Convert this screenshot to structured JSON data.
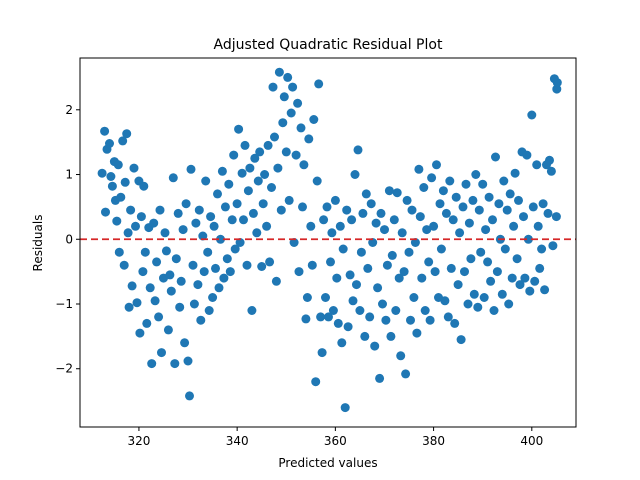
{
  "chart_data": {
    "type": "scatter",
    "title": "Adjusted Quadratic Residual Plot",
    "xlabel": "Predicted values",
    "ylabel": "Residuals",
    "xlim": [
      308,
      409
    ],
    "ylim": [
      -2.9,
      2.8
    ],
    "xticks": [
      320,
      340,
      360,
      380,
      400
    ],
    "yticks": [
      -2,
      -1,
      0,
      1,
      2
    ],
    "xtick_labels": [
      "320",
      "340",
      "360",
      "380",
      "400"
    ],
    "ytick_labels": [
      "−2",
      "−1",
      "0",
      "1",
      "2"
    ],
    "grid": false,
    "reference_line": {
      "y": 0,
      "style": "dashed",
      "color": "#d62728"
    },
    "marker_color": "#1f77b4",
    "points": [
      [
        312.5,
        1.02
      ],
      [
        313.0,
        1.67
      ],
      [
        313.2,
        0.42
      ],
      [
        313.5,
        1.39
      ],
      [
        314.0,
        1.48
      ],
      [
        314.3,
        0.97
      ],
      [
        314.6,
        0.82
      ],
      [
        315.0,
        1.2
      ],
      [
        315.2,
        0.6
      ],
      [
        315.5,
        0.28
      ],
      [
        315.8,
        1.15
      ],
      [
        316.0,
        -0.2
      ],
      [
        316.3,
        0.65
      ],
      [
        316.7,
        1.52
      ],
      [
        317.0,
        -0.4
      ],
      [
        317.2,
        0.88
      ],
      [
        317.5,
        1.63
      ],
      [
        317.8,
        0.1
      ],
      [
        318.0,
        -1.05
      ],
      [
        318.3,
        0.45
      ],
      [
        318.6,
        -0.72
      ],
      [
        319.0,
        1.1
      ],
      [
        319.3,
        0.2
      ],
      [
        319.6,
        -0.98
      ],
      [
        320.0,
        0.9
      ],
      [
        320.2,
        -1.45
      ],
      [
        320.5,
        0.35
      ],
      [
        320.8,
        -0.5
      ],
      [
        321.0,
        0.82
      ],
      [
        321.3,
        -0.2
      ],
      [
        321.6,
        -1.3
      ],
      [
        322.0,
        0.18
      ],
      [
        322.3,
        -0.75
      ],
      [
        322.6,
        -1.92
      ],
      [
        323.0,
        0.25
      ],
      [
        323.3,
        -0.95
      ],
      [
        323.6,
        -0.35
      ],
      [
        324.0,
        -1.2
      ],
      [
        324.3,
        0.45
      ],
      [
        324.6,
        -1.75
      ],
      [
        325.0,
        -0.6
      ],
      [
        325.3,
        0.1
      ],
      [
        325.6,
        -0.18
      ],
      [
        326.0,
        -1.4
      ],
      [
        326.3,
        -0.55
      ],
      [
        326.6,
        -0.8
      ],
      [
        327.0,
        0.95
      ],
      [
        327.3,
        -1.92
      ],
      [
        327.6,
        -0.3
      ],
      [
        328.0,
        0.4
      ],
      [
        328.3,
        -1.05
      ],
      [
        328.6,
        -0.65
      ],
      [
        329.0,
        0.15
      ],
      [
        329.3,
        -1.6
      ],
      [
        329.6,
        0.55
      ],
      [
        330.0,
        -1.88
      ],
      [
        330.3,
        -2.42
      ],
      [
        330.6,
        1.08
      ],
      [
        331.0,
        -0.4
      ],
      [
        331.3,
        -1.0
      ],
      [
        331.6,
        0.25
      ],
      [
        332.0,
        -0.7
      ],
      [
        332.3,
        0.45
      ],
      [
        332.6,
        -1.25
      ],
      [
        333.0,
        0.05
      ],
      [
        333.3,
        -0.5
      ],
      [
        333.6,
        0.9
      ],
      [
        334.0,
        -0.2
      ],
      [
        334.3,
        -1.1
      ],
      [
        334.6,
        0.35
      ],
      [
        335.0,
        -0.9
      ],
      [
        335.3,
        0.2
      ],
      [
        335.6,
        -0.45
      ],
      [
        336.0,
        0.7
      ],
      [
        336.3,
        -0.75
      ],
      [
        336.6,
        0.0
      ],
      [
        337.0,
        1.05
      ],
      [
        337.3,
        -0.6
      ],
      [
        337.6,
        0.5
      ],
      [
        338.0,
        -0.3
      ],
      [
        338.3,
        0.85
      ],
      [
        338.6,
        -0.5
      ],
      [
        339.0,
        0.3
      ],
      [
        339.3,
        1.3
      ],
      [
        339.6,
        -0.15
      ],
      [
        340.0,
        0.55
      ],
      [
        340.3,
        1.7
      ],
      [
        340.6,
        -0.05
      ],
      [
        341.0,
        1.02
      ],
      [
        341.3,
        0.3
      ],
      [
        341.6,
        1.45
      ],
      [
        342.0,
        -0.4
      ],
      [
        342.3,
        0.75
      ],
      [
        342.6,
        1.1
      ],
      [
        343.0,
        -1.1
      ],
      [
        343.3,
        0.4
      ],
      [
        343.6,
        1.25
      ],
      [
        344.0,
        0.1
      ],
      [
        344.3,
        0.9
      ],
      [
        344.6,
        1.35
      ],
      [
        345.0,
        -0.42
      ],
      [
        345.3,
        0.55
      ],
      [
        345.6,
        1.0
      ],
      [
        346.0,
        0.2
      ],
      [
        346.3,
        1.45
      ],
      [
        346.6,
        -0.35
      ],
      [
        347.0,
        0.8
      ],
      [
        347.3,
        2.35
      ],
      [
        347.6,
        1.58
      ],
      [
        348.0,
        -0.65
      ],
      [
        348.3,
        1.1
      ],
      [
        348.6,
        2.58
      ],
      [
        349.0,
        0.45
      ],
      [
        349.3,
        1.8
      ],
      [
        349.6,
        2.2
      ],
      [
        350.0,
        1.35
      ],
      [
        350.3,
        2.5
      ],
      [
        350.6,
        0.6
      ],
      [
        351.0,
        1.95
      ],
      [
        351.3,
        2.35
      ],
      [
        351.6,
        -0.05
      ],
      [
        352.0,
        1.3
      ],
      [
        352.3,
        2.1
      ],
      [
        352.6,
        -0.5
      ],
      [
        353.0,
        1.72
      ],
      [
        353.3,
        0.5
      ],
      [
        353.6,
        1.15
      ],
      [
        354.0,
        -1.23
      ],
      [
        354.3,
        -0.9
      ],
      [
        354.6,
        1.55
      ],
      [
        355.0,
        0.2
      ],
      [
        355.3,
        -0.4
      ],
      [
        355.6,
        1.85
      ],
      [
        356.0,
        -2.2
      ],
      [
        356.3,
        0.9
      ],
      [
        356.6,
        2.4
      ],
      [
        357.0,
        -1.2
      ],
      [
        357.3,
        -1.75
      ],
      [
        357.6,
        0.3
      ],
      [
        358.0,
        -0.9
      ],
      [
        358.3,
        0.5
      ],
      [
        358.6,
        -1.2
      ],
      [
        359.0,
        -0.35
      ],
      [
        359.3,
        0.1
      ],
      [
        359.6,
        -1.1
      ],
      [
        360.0,
        0.6
      ],
      [
        360.3,
        -0.6
      ],
      [
        360.6,
        -1.3
      ],
      [
        361.0,
        0.2
      ],
      [
        361.3,
        -1.6
      ],
      [
        361.6,
        -0.15
      ],
      [
        362.0,
        -2.6
      ],
      [
        362.3,
        0.45
      ],
      [
        362.6,
        -1.35
      ],
      [
        363.0,
        -0.55
      ],
      [
        363.3,
        0.3
      ],
      [
        363.6,
        -0.95
      ],
      [
        364.0,
        1.0
      ],
      [
        364.3,
        -0.7
      ],
      [
        364.6,
        1.38
      ],
      [
        365.0,
        -1.1
      ],
      [
        365.3,
        -0.2
      ],
      [
        365.6,
        0.4
      ],
      [
        366.0,
        -1.5
      ],
      [
        366.3,
        0.7
      ],
      [
        366.6,
        -0.45
      ],
      [
        367.0,
        -1.2
      ],
      [
        367.3,
        0.55
      ],
      [
        367.6,
        -0.05
      ],
      [
        368.0,
        -1.65
      ],
      [
        368.3,
        0.25
      ],
      [
        368.6,
        -0.75
      ],
      [
        369.0,
        -2.15
      ],
      [
        369.3,
        0.4
      ],
      [
        369.6,
        -1.0
      ],
      [
        370.0,
        0.15
      ],
      [
        370.3,
        -1.25
      ],
      [
        370.6,
        -0.4
      ],
      [
        371.0,
        0.75
      ],
      [
        371.3,
        -1.5
      ],
      [
        371.6,
        -0.25
      ],
      [
        372.0,
        0.3
      ],
      [
        372.3,
        -1.1
      ],
      [
        372.6,
        0.72
      ],
      [
        373.0,
        -0.6
      ],
      [
        373.3,
        -1.8
      ],
      [
        373.6,
        0.1
      ],
      [
        374.0,
        -0.5
      ],
      [
        374.3,
        -2.08
      ],
      [
        374.6,
        0.6
      ],
      [
        375.0,
        -0.2
      ],
      [
        375.3,
        -1.25
      ],
      [
        375.6,
        0.45
      ],
      [
        376.0,
        -0.9
      ],
      [
        376.3,
        -0.05
      ],
      [
        376.6,
        -1.45
      ],
      [
        377.0,
        1.08
      ],
      [
        377.3,
        0.35
      ],
      [
        377.6,
        -0.6
      ],
      [
        378.0,
        0.8
      ],
      [
        378.3,
        -1.1
      ],
      [
        378.6,
        0.15
      ],
      [
        379.0,
        -0.35
      ],
      [
        379.3,
        -1.25
      ],
      [
        379.6,
        0.95
      ],
      [
        380.0,
        0.2
      ],
      [
        380.3,
        -0.5
      ],
      [
        380.6,
        1.15
      ],
      [
        381.0,
        -0.9
      ],
      [
        381.3,
        0.55
      ],
      [
        381.6,
        -0.15
      ],
      [
        382.0,
        0.75
      ],
      [
        382.3,
        -0.95
      ],
      [
        382.6,
        0.4
      ],
      [
        383.0,
        -1.2
      ],
      [
        383.3,
        0.9
      ],
      [
        383.6,
        -0.45
      ],
      [
        384.0,
        0.3
      ],
      [
        384.3,
        -1.3
      ],
      [
        384.6,
        0.65
      ],
      [
        385.0,
        -0.7
      ],
      [
        385.3,
        0.1
      ],
      [
        385.6,
        -1.55
      ],
      [
        386.0,
        0.5
      ],
      [
        386.3,
        -0.5
      ],
      [
        386.6,
        0.85
      ],
      [
        387.0,
        -1.0
      ],
      [
        387.3,
        0.25
      ],
      [
        387.6,
        -0.3
      ],
      [
        388.0,
        0.6
      ],
      [
        388.3,
        -0.85
      ],
      [
        388.6,
        1.0
      ],
      [
        389.0,
        -1.05
      ],
      [
        389.3,
        0.45
      ],
      [
        389.6,
        -0.2
      ],
      [
        390.0,
        0.85
      ],
      [
        390.3,
        -0.9
      ],
      [
        390.6,
        0.15
      ],
      [
        391.0,
        -0.35
      ],
      [
        391.3,
        0.65
      ],
      [
        391.6,
        -0.65
      ],
      [
        392.0,
        0.3
      ],
      [
        392.3,
        -1.1
      ],
      [
        392.6,
        1.27
      ],
      [
        393.0,
        -0.5
      ],
      [
        393.3,
        0.55
      ],
      [
        393.6,
        0.0
      ],
      [
        394.0,
        -0.85
      ],
      [
        394.3,
        0.9
      ],
      [
        394.6,
        -0.15
      ],
      [
        395.0,
        0.45
      ],
      [
        395.3,
        -1.0
      ],
      [
        395.6,
        0.7
      ],
      [
        396.0,
        -0.6
      ],
      [
        396.3,
        0.2
      ],
      [
        396.6,
        1.02
      ],
      [
        397.0,
        -0.3
      ],
      [
        397.3,
        0.6
      ],
      [
        397.6,
        -0.7
      ],
      [
        398.0,
        1.35
      ],
      [
        398.3,
        0.35
      ],
      [
        398.6,
        -0.6
      ],
      [
        399.0,
        1.3
      ],
      [
        399.3,
        0.0
      ],
      [
        399.6,
        -0.8
      ],
      [
        400.0,
        1.92
      ],
      [
        400.3,
        0.5
      ],
      [
        400.6,
        -0.65
      ],
      [
        401.0,
        1.15
      ],
      [
        401.3,
        0.2
      ],
      [
        401.6,
        -0.45
      ],
      [
        402.0,
        -0.15
      ],
      [
        402.3,
        0.55
      ],
      [
        402.6,
        -0.78
      ],
      [
        403.0,
        1.15
      ],
      [
        403.3,
        0.4
      ],
      [
        403.6,
        1.22
      ],
      [
        404.0,
        1.05
      ],
      [
        404.3,
        -0.1
      ],
      [
        404.6,
        2.48
      ],
      [
        405.0,
        0.35
      ],
      [
        405.1,
        2.32
      ],
      [
        405.2,
        2.42
      ]
    ]
  }
}
